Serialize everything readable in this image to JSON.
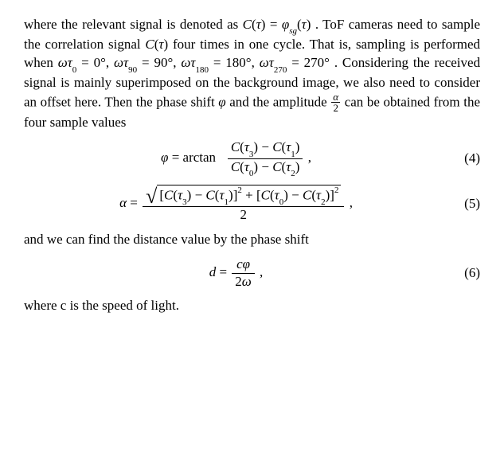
{
  "para1_a": "where the relevant signal is denoted as ",
  "para1_b": ". ToF cameras need to sample the correlation signal ",
  "para1_c": " four times in one cycle. That is, sampling is performed when ",
  "para1_d": ". Considering the received signal is mainly superimposed on the background image, we also need to consider an offset here. Then the phase shift ",
  "para1_e": " and the amplitude ",
  "para1_f": " can be obtained from the four sample values",
  "sig": {
    "C": "C",
    "tau": "τ",
    "eq": " = ",
    "phi": "φ",
    "sg": "sg",
    "open": "(",
    "close": ")"
  },
  "angles": {
    "w": "ω",
    "t": "τ",
    "t0": "0",
    "t90": "90",
    "t180": "180",
    "t270": "270",
    "a0": "0°",
    "a90": "90°",
    "a180": "180°",
    "a270": "270°",
    "eq": " = ",
    "comma": ", "
  },
  "amp": {
    "num": "α",
    "den": "2"
  },
  "eq4": {
    "lhs_var": "φ",
    "fn": "arctan",
    "eq": " = ",
    "num_a": "C",
    "num_b": "τ",
    "num_i1": "3",
    "num_i2": "1",
    "den_i1": "0",
    "den_i2": "2",
    "minus": " − ",
    "comma": ",",
    "label": "(4)"
  },
  "eq5": {
    "lhs_var": "α",
    "eq": " = ",
    "C": "C",
    "tau": "τ",
    "i3": "3",
    "i1": "1",
    "i0": "0",
    "i2": "2",
    "minus": " − ",
    "plus": " + ",
    "sq": "2",
    "den": "2",
    "comma": ",",
    "label": "(5)"
  },
  "para2": "and we can find the distance value by the phase shift",
  "eq6": {
    "lhs_var": "d",
    "eq": " = ",
    "num_a": "c",
    "num_b": "φ",
    "den_a": "2",
    "den_b": "ω",
    "comma": ",",
    "label": "(6)"
  },
  "para3": "where c is the speed of light."
}
